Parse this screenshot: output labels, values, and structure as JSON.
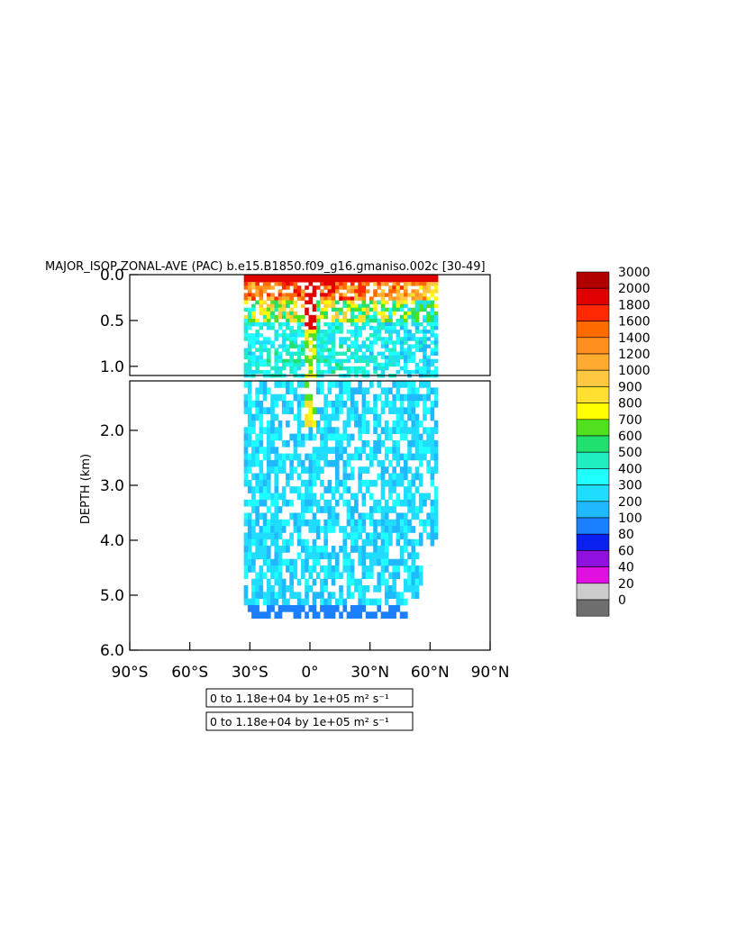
{
  "chart_data": {
    "type": "heatmap",
    "title": "MAJOR_ISOP ZONAL-AVE (PAC) b.e15.B1850.f09_g16.gmaniso.002c [30-49]",
    "ylabel": "DEPTH (km)",
    "xlabel": "",
    "x_ticks": [
      "90°S",
      "60°S",
      "30°S",
      "0°",
      "30°N",
      "60°N",
      "90°N"
    ],
    "x_tick_values": [
      -90,
      -60,
      -30,
      0,
      30,
      60,
      90
    ],
    "xlim": [
      -90,
      90
    ],
    "upper_panel": {
      "ylim": [
        0,
        1.1
      ],
      "y_ticks": [
        "0.0",
        "0.5",
        "1.0"
      ],
      "y_tick_values": [
        0,
        0.5,
        1.0
      ]
    },
    "lower_panel": {
      "ylim": [
        1.1,
        6.0
      ],
      "y_ticks": [
        "2.0",
        "3.0",
        "4.0",
        "5.0",
        "6.0"
      ],
      "y_tick_values": [
        2.0,
        3.0,
        4.0,
        5.0,
        6.0
      ]
    },
    "colorbar": {
      "levels": [
        "3000",
        "2000",
        "1800",
        "1600",
        "1400",
        "1200",
        "1000",
        "900",
        "800",
        "700",
        "600",
        "500",
        "400",
        "300",
        "200",
        "100",
        "80",
        "60",
        "40",
        "20",
        "0"
      ],
      "colors": [
        "#b00000",
        "#e00000",
        "#ff2800",
        "#ff6a00",
        "#ff9020",
        "#ffaa30",
        "#ffc840",
        "#ffe030",
        "#ffff00",
        "#50e020",
        "#20e070",
        "#20eec0",
        "#20ffff",
        "#20ddff",
        "#20b8ff",
        "#1a80ff",
        "#0a20ee",
        "#9010e0",
        "#e010e0",
        "#cccccc",
        "#6e6e6e"
      ]
    },
    "data_extent": {
      "lat_min": -33,
      "lat_max": 62,
      "depth_max_km": 5.35
    },
    "legend_boxes": [
      "0 to 1.18e+04 by 1e+05 m² s⁻¹",
      "0 to 1.18e+04 by 1e+05 m² s⁻¹"
    ]
  }
}
